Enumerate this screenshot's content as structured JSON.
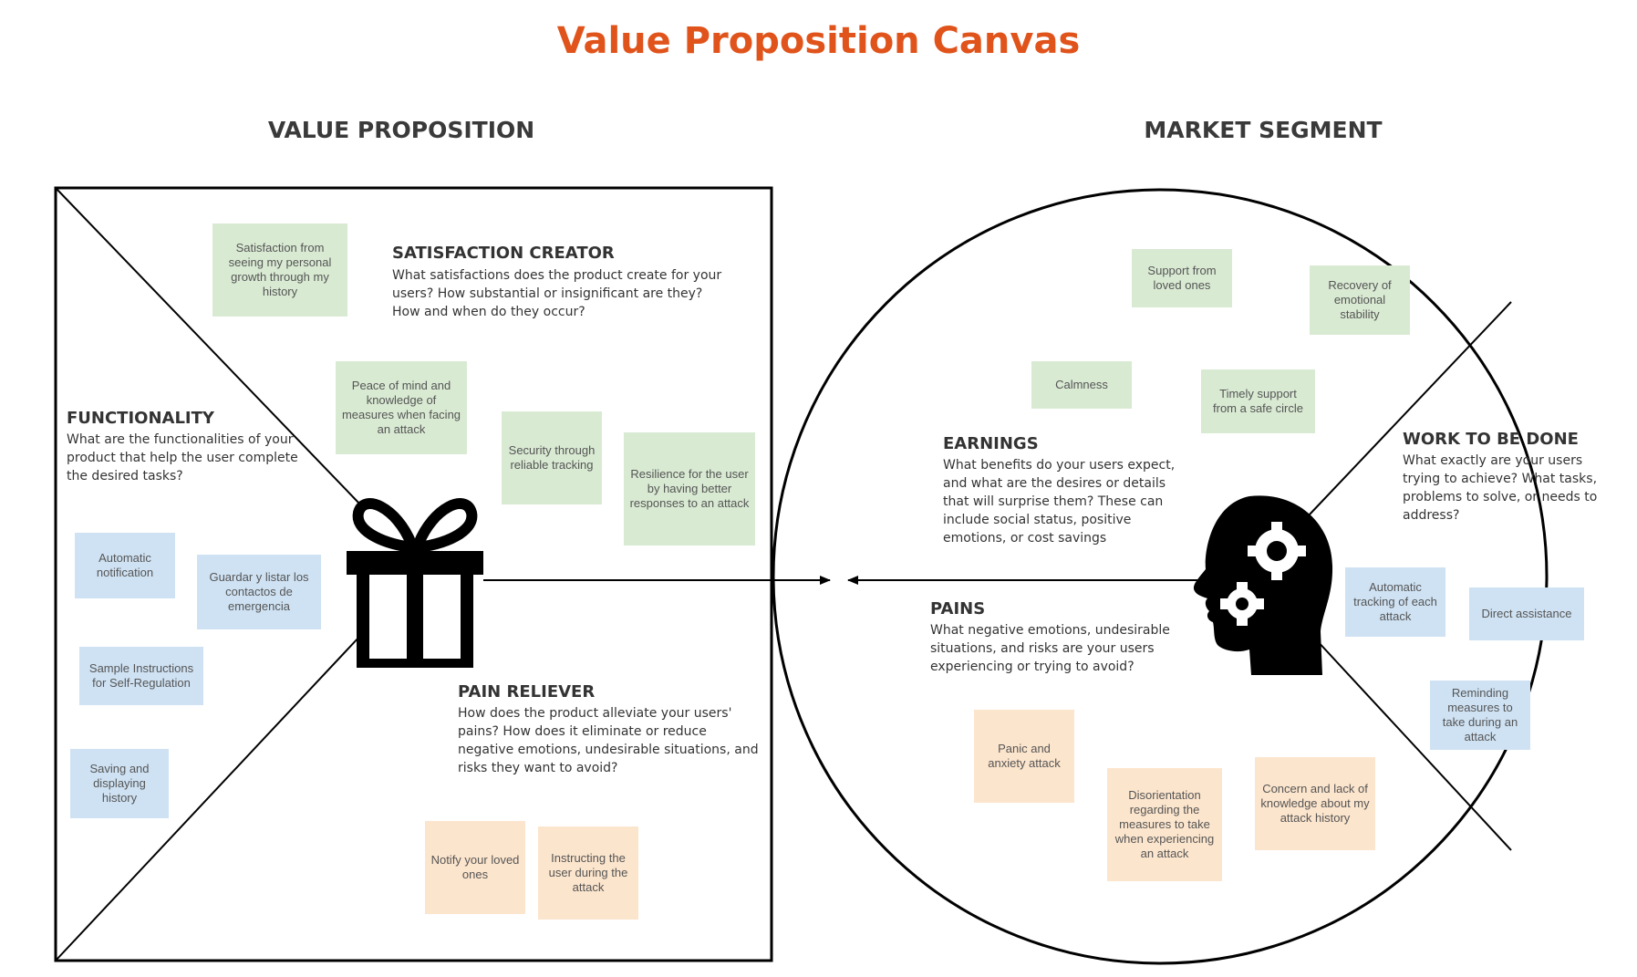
{
  "title": "Value Proposition Canvas",
  "headings": {
    "value_proposition": "VALUE PROPOSITION",
    "market_segment": "MARKET SEGMENT"
  },
  "colors": {
    "title": "#e0541c",
    "note_green": "#d9ead3",
    "note_blue": "#cfe2f3",
    "note_orange": "#fce5cd"
  },
  "icons": [
    "gift-icon",
    "head-gears-icon"
  ],
  "sections": {
    "satisfaction_creator": {
      "title": "SATISFACTION CREATOR",
      "desc": "What satisfactions does the product create for your users? How substantial or insignificant are they? How and when do they occur?"
    },
    "functionality": {
      "title": "FUNCTIONALITY",
      "desc": "What are the functionalities of your product that help the user complete the desired tasks?"
    },
    "pain_reliever": {
      "title": "PAIN RELIEVER",
      "desc": "How does the product alleviate your users' pains? How does it eliminate or reduce negative emotions, undesirable situations, and risks they want to avoid?"
    },
    "earnings": {
      "title": "EARNINGS",
      "desc": "What benefits do your users expect, and what are the desires or details that will surprise them? These can include social status, positive emotions, or cost savings"
    },
    "work_to_be_done": {
      "title": "WORK TO BE DONE",
      "desc": "What exactly are your users trying to achieve? What tasks, problems to solve, or needs to address?"
    },
    "pains": {
      "title": "PAINS",
      "desc": "What negative emotions, undesirable situations, and risks are your users experiencing or trying to avoid?"
    }
  },
  "notes": {
    "satisfaction_creator": [
      "Satisfaction from seeing my personal growth through my history",
      "Peace of mind and knowledge of measures when facing an attack",
      "Security through reliable tracking",
      "Resilience for the user by having better responses to an attack"
    ],
    "functionality": [
      "Automatic notification",
      "Guardar y listar los contactos de emergencia",
      "Sample Instructions for Self-Regulation",
      "Saving and displaying history"
    ],
    "pain_reliever": [
      "Notify your loved ones",
      "Instructing the user during the attack"
    ],
    "earnings": [
      "Support from loved ones",
      "Recovery of emotional stability",
      "Calmness",
      "Timely support from a safe circle"
    ],
    "work_to_be_done": [
      "Automatic tracking of each attack",
      "Direct assistance",
      "Reminding measures to take during an attack"
    ],
    "pains": [
      "Panic and anxiety attack",
      "Disorientation regarding the measures to take when experiencing an attack",
      "Concern and lack of knowledge about my attack history"
    ]
  }
}
